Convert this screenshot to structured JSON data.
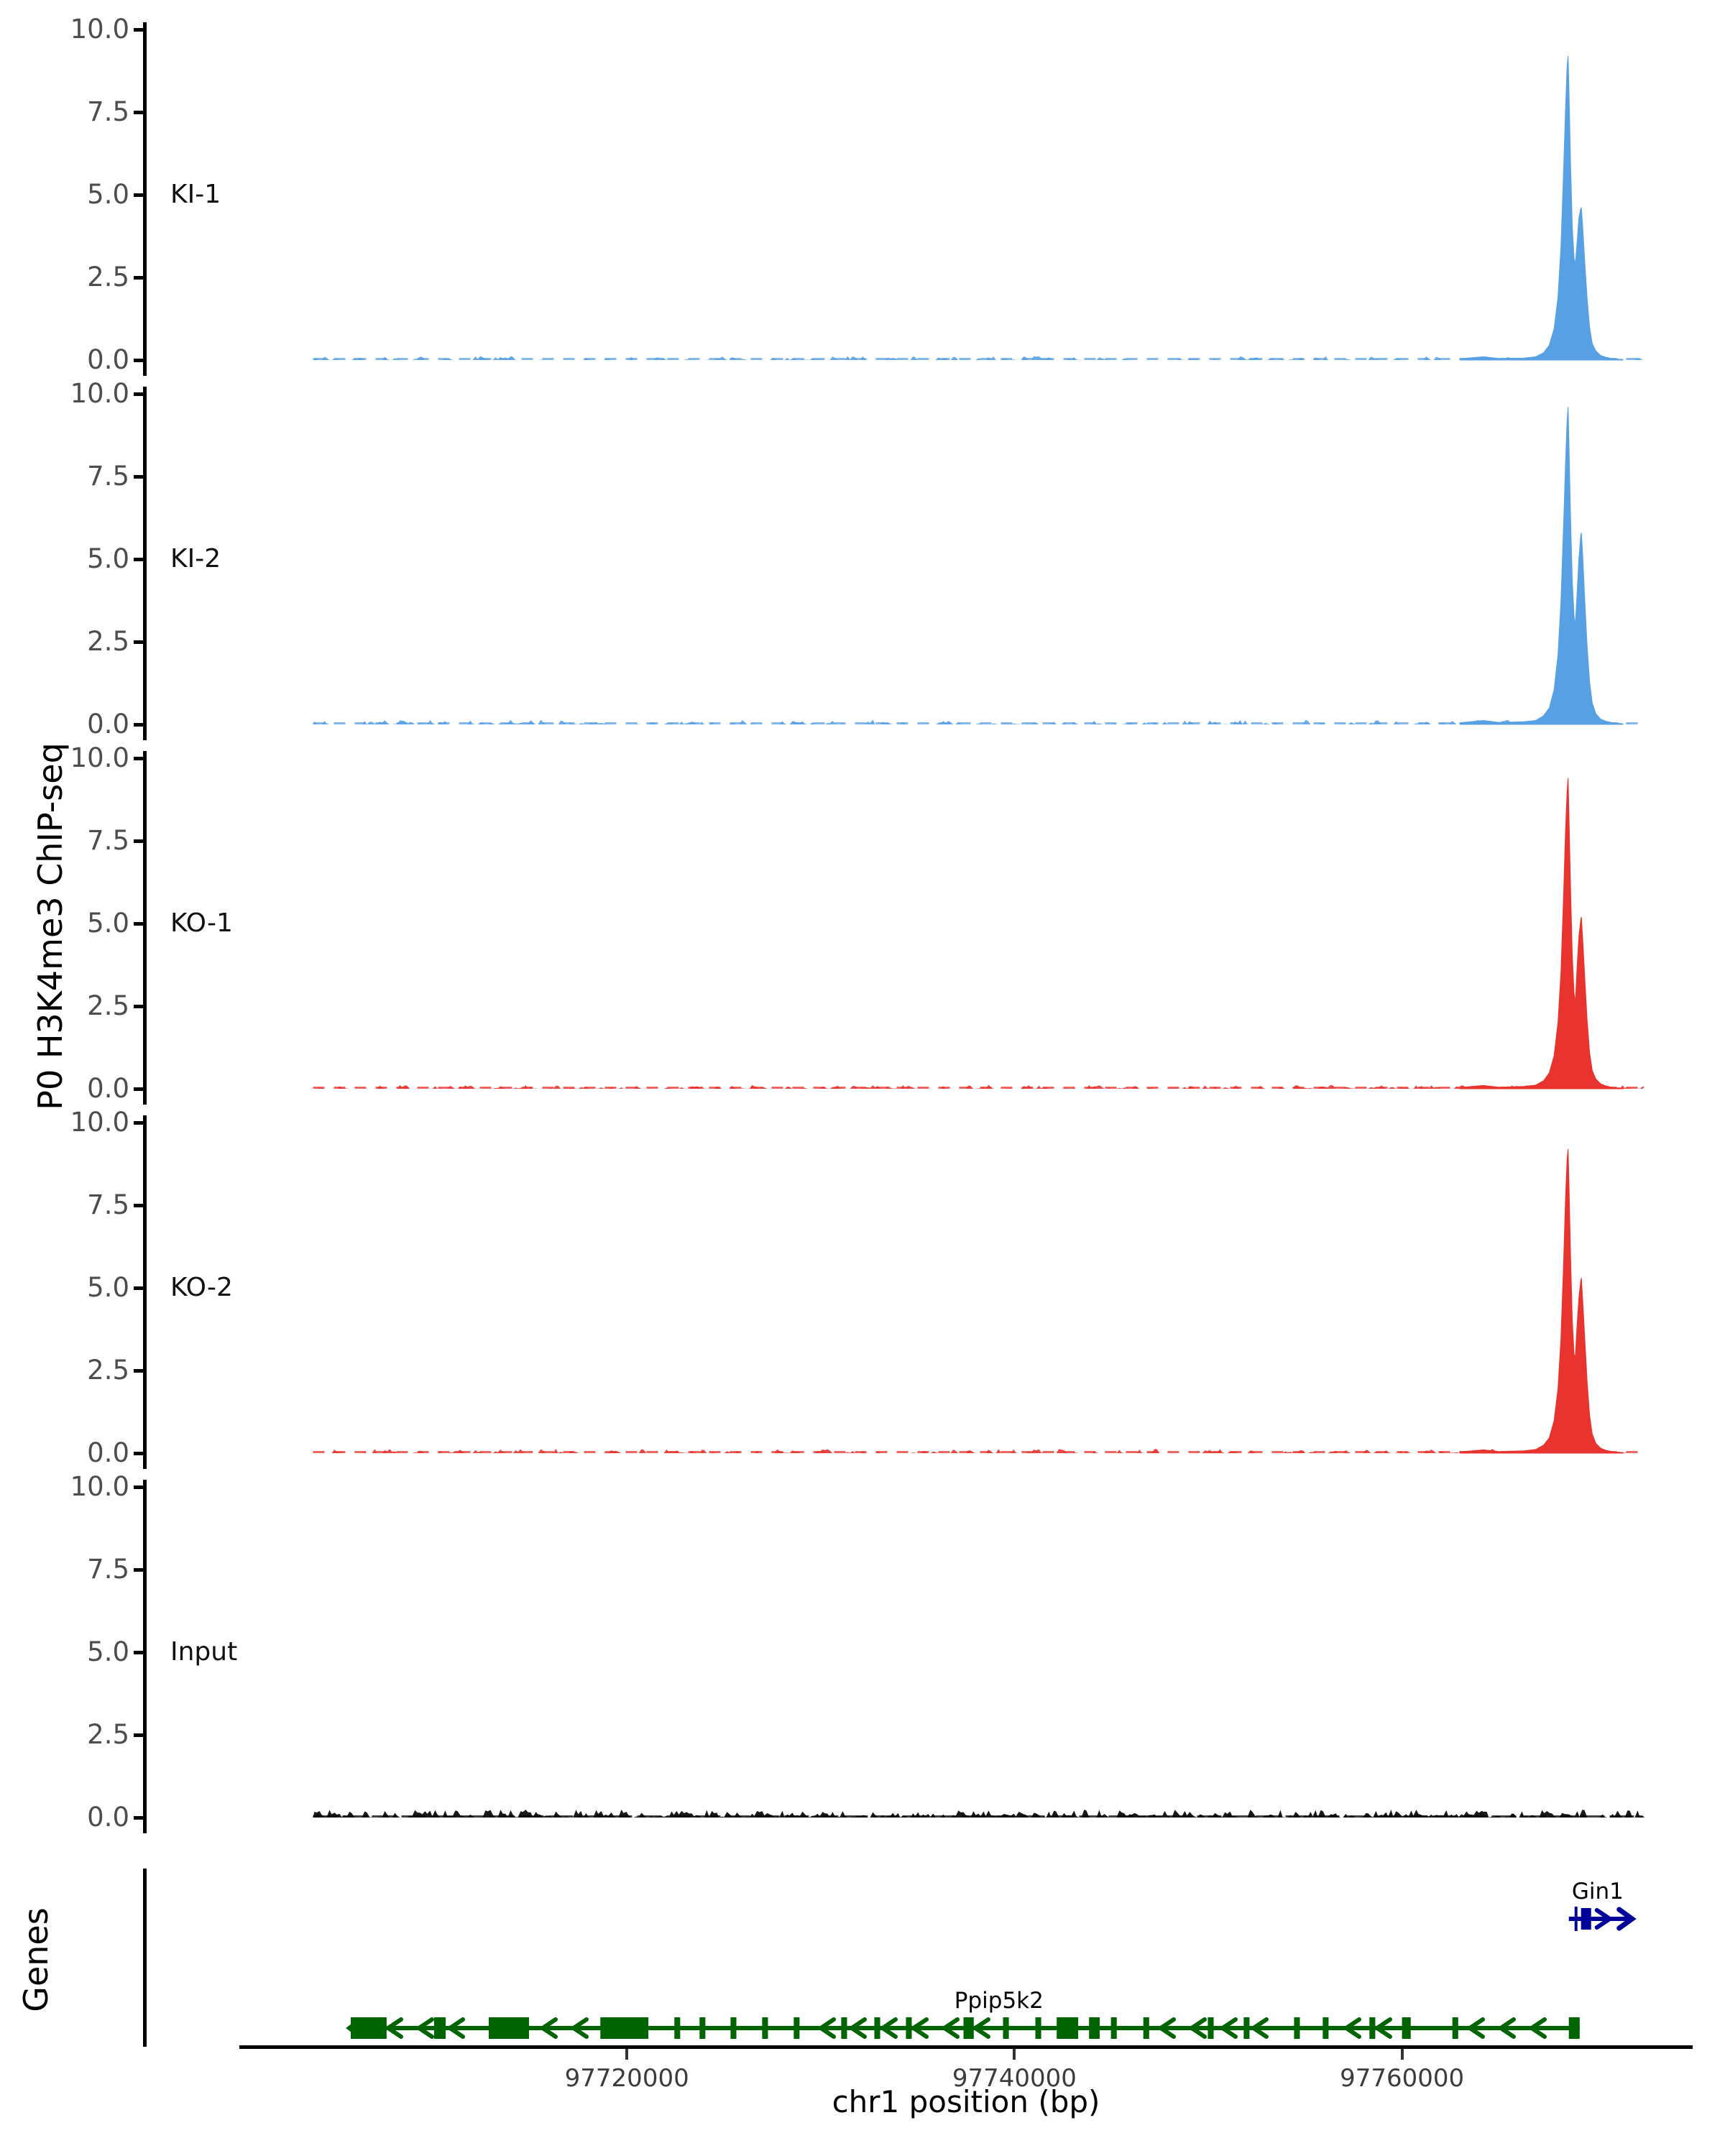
{
  "figure": {
    "y_axis_title": "P0 H3K4me3 ChIP-seq",
    "genes_panel_label": "Genes",
    "x_axis_title": "chr1 position (bp)"
  },
  "chart_data": {
    "type": "area",
    "description": "Genome-browser style coverage tracks of P0 H3K4me3 ChIP-seq over chr1 97.70-97.775 Mb with a bidirectional double peak at the Ppip5k2/Gin1 promoter region",
    "x_domain_bp": [
      97700000,
      97775000
    ],
    "data_extent_bp": [
      97703800,
      97772400
    ],
    "x_ticks": [
      {
        "bp": 97720000,
        "label": "97720000"
      },
      {
        "bp": 97740000,
        "label": "97740000"
      },
      {
        "bp": 97760000,
        "label": "97760000"
      }
    ],
    "y_domain": [
      0,
      10
    ],
    "y_tick_labels": [
      "10.0",
      "7.5",
      "5.0",
      "2.5",
      "0.0"
    ],
    "y_tick_values": [
      10,
      7.5,
      5,
      2.5,
      0
    ],
    "tracks": [
      {
        "label": "KI-1",
        "color": "#58A0E4",
        "noise_amplitude": 0.12,
        "noise_seed": 11,
        "noise_density": 0.42,
        "profile": [
          [
            97763000,
            0.04
          ],
          [
            97764200,
            0.1
          ],
          [
            97765000,
            0.05
          ],
          [
            97766300,
            0.06
          ],
          [
            97766900,
            0.1
          ],
          [
            97767300,
            0.22
          ],
          [
            97767600,
            0.45
          ],
          [
            97767850,
            0.95
          ],
          [
            97768050,
            1.9
          ],
          [
            97768200,
            3.4
          ],
          [
            97768330,
            5.6
          ],
          [
            97768440,
            7.6
          ],
          [
            97768520,
            8.9
          ],
          [
            97768572,
            9.2
          ],
          [
            97768620,
            8.1
          ],
          [
            97768700,
            5.9
          ],
          [
            97768790,
            4.0
          ],
          [
            97768880,
            3.1
          ],
          [
            97768943,
            2.9
          ],
          [
            97769030,
            3.5
          ],
          [
            97769130,
            4.3
          ],
          [
            97769220,
            4.58
          ],
          [
            97769260,
            4.6
          ],
          [
            97769330,
            4.0
          ],
          [
            97769430,
            3.0
          ],
          [
            97769550,
            1.9
          ],
          [
            97769680,
            1.0
          ],
          [
            97769820,
            0.5
          ],
          [
            97770000,
            0.28
          ],
          [
            97770250,
            0.14
          ],
          [
            97770550,
            0.08
          ],
          [
            97770900,
            0.04
          ],
          [
            97771400,
            0.02
          ]
        ]
      },
      {
        "label": "KI-2",
        "color": "#58A0E4",
        "noise_amplitude": 0.14,
        "noise_seed": 23,
        "noise_density": 0.5,
        "profile": [
          [
            97763000,
            0.05
          ],
          [
            97764200,
            0.12
          ],
          [
            97765000,
            0.06
          ],
          [
            97766300,
            0.08
          ],
          [
            97766900,
            0.12
          ],
          [
            97767300,
            0.26
          ],
          [
            97767600,
            0.5
          ],
          [
            97767850,
            1.05
          ],
          [
            97768050,
            2.1
          ],
          [
            97768200,
            3.7
          ],
          [
            97768330,
            5.9
          ],
          [
            97768440,
            7.9
          ],
          [
            97768520,
            9.2
          ],
          [
            97768572,
            9.6
          ],
          [
            97768620,
            8.4
          ],
          [
            97768700,
            6.2
          ],
          [
            97768790,
            4.3
          ],
          [
            97768880,
            3.3
          ],
          [
            97768943,
            3.0
          ],
          [
            97769030,
            3.9
          ],
          [
            97769130,
            5.0
          ],
          [
            97769220,
            5.7
          ],
          [
            97769260,
            5.8
          ],
          [
            97769330,
            5.1
          ],
          [
            97769430,
            3.8
          ],
          [
            97769550,
            2.4
          ],
          [
            97769680,
            1.3
          ],
          [
            97769820,
            0.65
          ],
          [
            97770000,
            0.33
          ],
          [
            97770250,
            0.16
          ],
          [
            97770550,
            0.09
          ],
          [
            97770900,
            0.05
          ],
          [
            97771400,
            0.02
          ]
        ]
      },
      {
        "label": "KO-1",
        "color": "#E8332E",
        "noise_amplitude": 0.12,
        "noise_seed": 37,
        "noise_density": 0.45,
        "profile": [
          [
            97763000,
            0.04
          ],
          [
            97764200,
            0.1
          ],
          [
            97765000,
            0.05
          ],
          [
            97766300,
            0.07
          ],
          [
            97766900,
            0.11
          ],
          [
            97767300,
            0.24
          ],
          [
            97767600,
            0.48
          ],
          [
            97767850,
            1.0
          ],
          [
            97768050,
            2.0
          ],
          [
            97768200,
            3.5
          ],
          [
            97768330,
            5.7
          ],
          [
            97768440,
            7.8
          ],
          [
            97768520,
            9.0
          ],
          [
            97768572,
            9.4
          ],
          [
            97768620,
            8.2
          ],
          [
            97768700,
            6.0
          ],
          [
            97768790,
            4.0
          ],
          [
            97768880,
            2.9
          ],
          [
            97768943,
            2.6
          ],
          [
            97769030,
            3.6
          ],
          [
            97769130,
            4.6
          ],
          [
            97769220,
            5.1
          ],
          [
            97769260,
            5.2
          ],
          [
            97769330,
            4.5
          ],
          [
            97769430,
            3.4
          ],
          [
            97769550,
            2.1
          ],
          [
            97769680,
            1.1
          ],
          [
            97769820,
            0.55
          ],
          [
            97770000,
            0.3
          ],
          [
            97770250,
            0.15
          ],
          [
            97770550,
            0.08
          ],
          [
            97770900,
            0.04
          ],
          [
            97771400,
            0.02
          ]
        ]
      },
      {
        "label": "KO-2",
        "color": "#E8332E",
        "noise_amplitude": 0.13,
        "noise_seed": 51,
        "noise_density": 0.45,
        "profile": [
          [
            97763000,
            0.04
          ],
          [
            97764200,
            0.1
          ],
          [
            97765000,
            0.05
          ],
          [
            97766300,
            0.07
          ],
          [
            97766900,
            0.11
          ],
          [
            97767300,
            0.24
          ],
          [
            97767600,
            0.46
          ],
          [
            97767850,
            0.98
          ],
          [
            97768050,
            1.95
          ],
          [
            97768200,
            3.45
          ],
          [
            97768330,
            5.6
          ],
          [
            97768440,
            7.7
          ],
          [
            97768520,
            8.9
          ],
          [
            97768572,
            9.2
          ],
          [
            97768620,
            8.1
          ],
          [
            97768700,
            5.9
          ],
          [
            97768790,
            4.0
          ],
          [
            97768880,
            3.0
          ],
          [
            97768943,
            2.9
          ],
          [
            97769030,
            3.8
          ],
          [
            97769130,
            4.7
          ],
          [
            97769220,
            5.2
          ],
          [
            97769260,
            5.3
          ],
          [
            97769330,
            4.6
          ],
          [
            97769430,
            3.5
          ],
          [
            97769550,
            2.2
          ],
          [
            97769680,
            1.15
          ],
          [
            97769820,
            0.58
          ],
          [
            97770000,
            0.3
          ],
          [
            97770250,
            0.15
          ],
          [
            97770550,
            0.08
          ],
          [
            97770900,
            0.04
          ],
          [
            97771400,
            0.02
          ]
        ]
      },
      {
        "label": "Input",
        "color": "#000000",
        "noise_amplitude": 0.24,
        "noise_seed": 77,
        "noise_density": 0.85,
        "profile": []
      }
    ],
    "genes": [
      {
        "name": "Gin1",
        "strand": "+",
        "color": "#00009B",
        "line_start_bp": 97768610,
        "line_end_bp": 97771800,
        "exons": [
          [
            97769240,
            97769760
          ]
        ],
        "label_bp": 97770100
      },
      {
        "name": "Ppip5k2",
        "strand": "-",
        "color": "#006400",
        "line_start_bp": 97705750,
        "line_end_bp": 97769170,
        "exons": [
          [
            97705750,
            97707600
          ],
          [
            97710050,
            97710650
          ],
          [
            97712870,
            97714950
          ],
          [
            97718630,
            97721110
          ],
          [
            97722450,
            97722750
          ],
          [
            97723750,
            97724050
          ],
          [
            97725350,
            97725650
          ],
          [
            97726980,
            97727280
          ],
          [
            97728610,
            97728910
          ],
          [
            97731060,
            97731360
          ],
          [
            97732770,
            97733070
          ],
          [
            97734400,
            97734700
          ],
          [
            97737370,
            97737900
          ],
          [
            97739410,
            97739710
          ],
          [
            97741080,
            97741380
          ],
          [
            97742180,
            97743290
          ],
          [
            97743850,
            97744400
          ],
          [
            97744980,
            97745280
          ],
          [
            97746650,
            97746950
          ],
          [
            97749980,
            97750280
          ],
          [
            97751830,
            97752130
          ],
          [
            97754430,
            97754730
          ],
          [
            97755910,
            97756210
          ],
          [
            97758320,
            97758620
          ],
          [
            97760000,
            97760450
          ],
          [
            97762600,
            97762900
          ],
          [
            97768610,
            97769170
          ]
        ],
        "label_bp": 97739200
      }
    ]
  }
}
